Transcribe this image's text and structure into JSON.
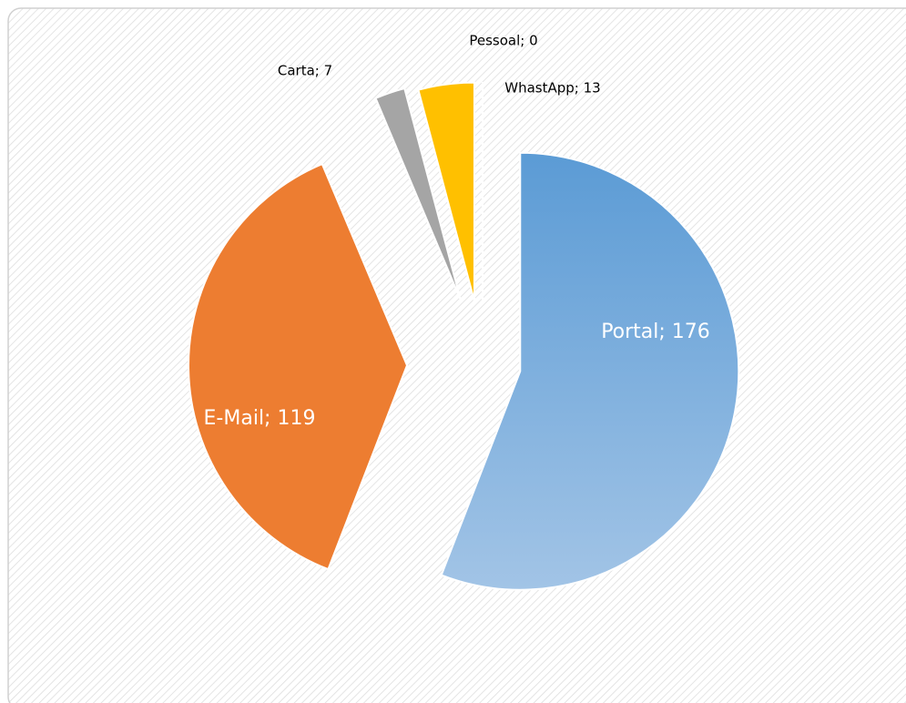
{
  "chart_data": {
    "type": "pie",
    "categories": [
      "Portal",
      "E-Mail",
      "Carta",
      "WhastApp",
      "Pessoal"
    ],
    "values": [
      176,
      119,
      7,
      13,
      0
    ],
    "value_labels": [
      "Portal; 176",
      "E-Mail; 119",
      "Carta; 7",
      "WhastApp; 13",
      "Pessoal; 0"
    ],
    "colors": [
      "#5b9bd5",
      "#ed7d31",
      "#a5a5a5",
      "#ffc000",
      "#4472c4"
    ]
  }
}
